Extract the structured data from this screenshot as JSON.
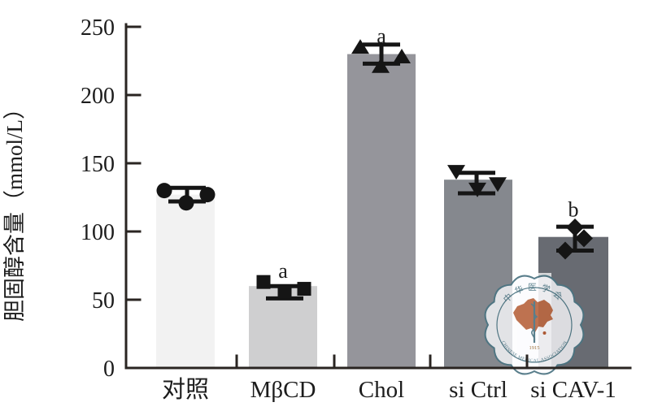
{
  "chart_data": {
    "type": "bar",
    "title": "",
    "ylabel": "胆固醇含量（mmol/L）",
    "xlabel": "",
    "ylim": [
      0,
      250
    ],
    "yticks": [
      0,
      50,
      100,
      150,
      200,
      250
    ],
    "grid": false,
    "legend": null,
    "categories": [
      "对照",
      "MβCD",
      "Chol",
      "si Ctrl",
      "si CAV-1"
    ],
    "values": [
      127,
      60,
      230,
      138,
      96
    ],
    "bar_colors": [
      "#f2f2f2",
      "#cfcfd0",
      "#95959b",
      "#85888e",
      "#686b72"
    ],
    "error_bars": [
      {
        "upper": 132,
        "lower": 122,
        "dx": 2
      },
      {
        "upper": 60,
        "lower": 51,
        "dx": 2
      },
      {
        "upper": 237,
        "lower": 223,
        "dx": 0
      },
      {
        "upper": 143,
        "lower": 128,
        "dx": -2
      },
      {
        "upper": 103.5,
        "lower": 86,
        "dx": 2
      }
    ],
    "scatter_series": [
      {
        "marker": "circle",
        "points": [
          {
            "dx": -26,
            "y": 130
          },
          {
            "dx": 1,
            "y": 121
          },
          {
            "dx": 27,
            "y": 127
          }
        ]
      },
      {
        "marker": "square",
        "points": [
          {
            "dx": -24,
            "y": 63
          },
          {
            "dx": 2,
            "y": 56
          },
          {
            "dx": 26,
            "y": 58
          }
        ]
      },
      {
        "marker": "triangle-up",
        "points": [
          {
            "dx": -26,
            "y": 235
          },
          {
            "dx": -1,
            "y": 221
          },
          {
            "dx": 25,
            "y": 228
          }
        ]
      },
      {
        "marker": "triangle-down",
        "points": [
          {
            "dx": -27,
            "y": 144
          },
          {
            "dx": -1,
            "y": 131
          },
          {
            "dx": 24,
            "y": 135
          }
        ]
      },
      {
        "marker": "diamond",
        "points": [
          {
            "dx": 2,
            "y": 103
          },
          {
            "dx": 13,
            "y": 95
          },
          {
            "dx": -10,
            "y": 86
          }
        ]
      }
    ],
    "significance_labels": [
      {
        "category_index": 1,
        "label": "a",
        "y": 66
      },
      {
        "category_index": 2,
        "label": "a",
        "y": 238
      },
      {
        "category_index": 4,
        "label": "b",
        "y": 111
      }
    ]
  },
  "watermark": {
    "organization_zh": "中华医学会",
    "organization_en": "CHINESE MEDICAL ASSOCIATION",
    "year": "1915",
    "ring_color": "#4b7482",
    "map_color": "#b2582f",
    "year_color": "#96672c"
  },
  "colors": {
    "axis": "#2a2522",
    "marker": "#151515",
    "text": "#1c1c1c"
  }
}
